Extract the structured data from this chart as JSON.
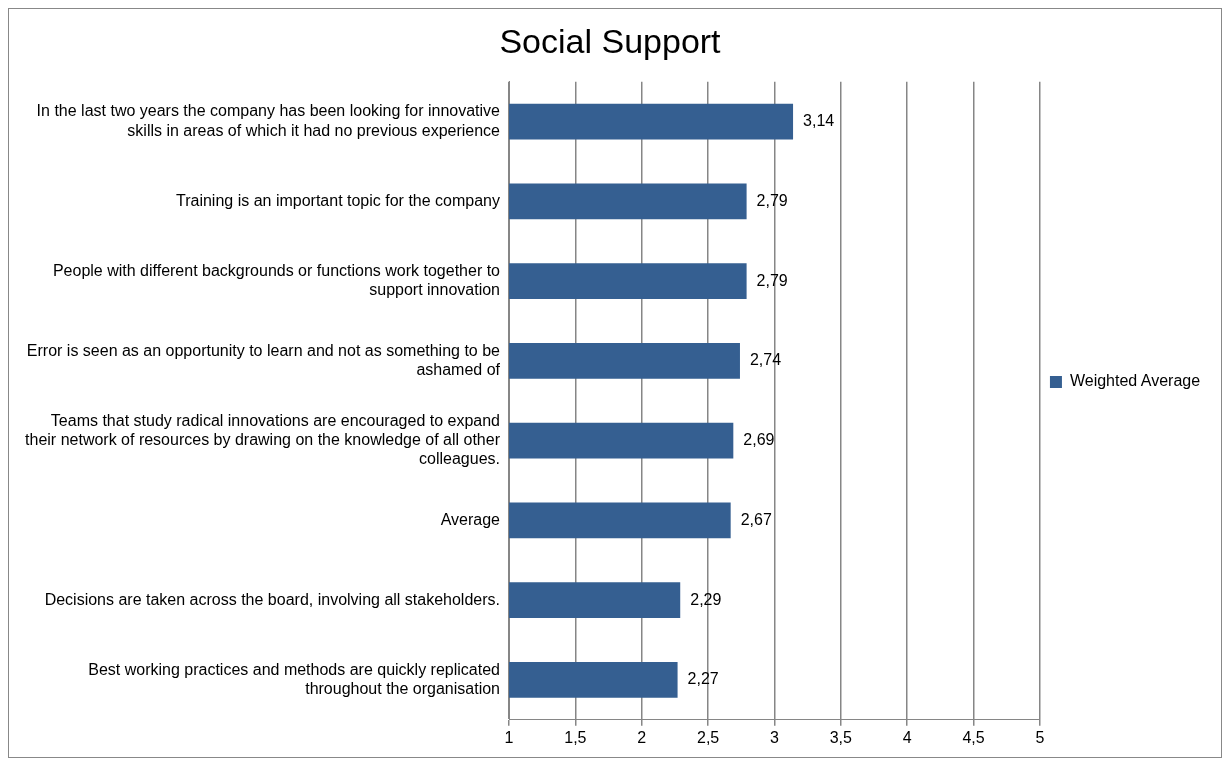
{
  "chart_data": {
    "type": "bar",
    "orientation": "horizontal",
    "title": "Social Support",
    "categories": [
      "In the last two years the company has been looking for innovative skills in areas of which it had no previous experience",
      "Training is an important topic for the company",
      "People with different backgrounds or functions work together to support innovation",
      "Error is seen as an opportunity to learn and not as something to be ashamed of",
      "Teams that study radical innovations are encouraged to expand their network of resources by drawing on the knowledge of all other colleagues.",
      "Average",
      "Decisions are taken across the board, involving all stakeholders.",
      "Best working practices and methods are quickly replicated throughout the organisation"
    ],
    "series": [
      {
        "name": "Weighted Average",
        "color": "#355f91",
        "values": [
          3.14,
          2.79,
          2.79,
          2.74,
          2.69,
          2.67,
          2.29,
          2.27
        ],
        "value_labels": [
          "3,14",
          "2,79",
          "2,79",
          "2,74",
          "2,69",
          "2,67",
          "2,29",
          "2,27"
        ]
      }
    ],
    "xlim": [
      1,
      5
    ],
    "xticks": [
      1,
      {
        "value": 1.5,
        "label": "1,5"
      },
      2,
      {
        "value": 2.5,
        "label": "2,5"
      },
      3,
      {
        "value": 3.5,
        "label": "3,5"
      },
      4,
      {
        "value": 4.5,
        "label": "4,5"
      },
      5
    ],
    "grid": "x",
    "legend": "right"
  }
}
